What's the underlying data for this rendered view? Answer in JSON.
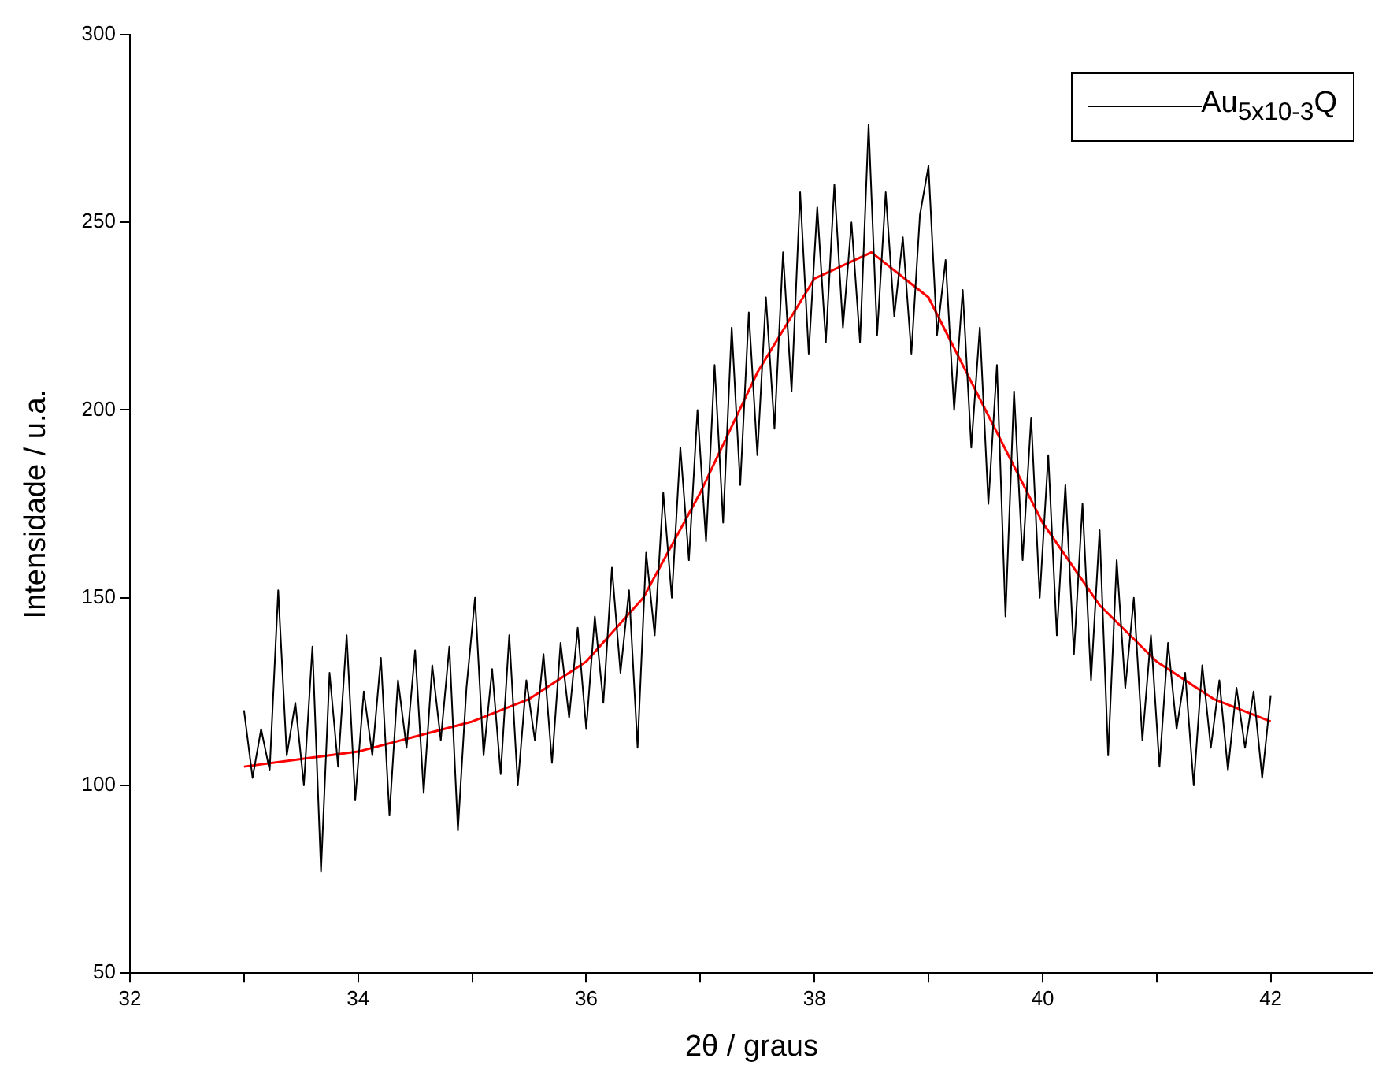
{
  "chart_data": {
    "type": "line",
    "xlabel": "2θ / graus",
    "ylabel": "Intensidade / u.a.",
    "xlim": [
      32,
      42.9
    ],
    "ylim": [
      50,
      300
    ],
    "xticks": [
      32,
      {
        "value": 33,
        "label": null
      },
      34,
      {
        "value": 35,
        "label": null
      },
      36,
      {
        "value": 37,
        "label": null
      },
      38,
      {
        "value": 39,
        "label": null
      },
      40,
      {
        "value": 41,
        "label": null
      },
      42
    ],
    "yticks": [
      50,
      100,
      150,
      200,
      250,
      300
    ],
    "grid": false,
    "legend": "top right",
    "marker": "none",
    "line_style": "solid",
    "series": [
      {
        "name": "Au$_{5x10-3}$Q",
        "color": "#000000",
        "x": [
          33.0,
          33.075,
          33.15,
          33.225,
          33.3,
          33.375,
          33.45,
          33.525,
          33.6,
          33.675,
          33.75,
          33.825,
          33.9,
          33.975,
          34.05,
          34.125,
          34.2,
          34.275,
          34.35,
          34.425,
          34.5,
          34.575,
          34.65,
          34.725,
          34.8,
          34.875,
          34.95,
          35.025,
          35.1,
          35.175,
          35.25,
          35.325,
          35.4,
          35.475,
          35.55,
          35.625,
          35.7,
          35.775,
          35.85,
          35.925,
          36.0,
          36.075,
          36.15,
          36.225,
          36.3,
          36.375,
          36.45,
          36.525,
          36.6,
          36.675,
          36.75,
          36.825,
          36.9,
          36.975,
          37.05,
          37.125,
          37.2,
          37.275,
          37.35,
          37.425,
          37.5,
          37.575,
          37.65,
          37.725,
          37.8,
          37.875,
          37.95,
          38.025,
          38.1,
          38.175,
          38.25,
          38.325,
          38.4,
          38.475,
          38.55,
          38.625,
          38.7,
          38.775,
          38.85,
          38.925,
          39.0,
          39.075,
          39.15,
          39.225,
          39.3,
          39.375,
          39.45,
          39.525,
          39.6,
          39.675,
          39.75,
          39.825,
          39.9,
          39.975,
          40.05,
          40.125,
          40.2,
          40.275,
          40.35,
          40.425,
          40.5,
          40.575,
          40.65,
          40.725,
          40.8,
          40.875,
          40.95,
          41.025,
          41.1,
          41.175,
          41.25,
          41.325,
          41.4,
          41.475,
          41.55,
          41.625,
          41.7,
          41.775,
          41.85,
          41.925,
          42.0
        ],
        "values": [
          120,
          102,
          115,
          104,
          152,
          108,
          122,
          100,
          137,
          77,
          130,
          105,
          140,
          96,
          125,
          108,
          134,
          92,
          128,
          110,
          136,
          98,
          132,
          112,
          137,
          88,
          126,
          150,
          108,
          131,
          103,
          140,
          100,
          128,
          112,
          135,
          106,
          138,
          118,
          142,
          115,
          145,
          122,
          158,
          130,
          152,
          110,
          162,
          140,
          178,
          150,
          190,
          160,
          200,
          165,
          212,
          170,
          222,
          180,
          226,
          188,
          230,
          195,
          242,
          205,
          258,
          215,
          254,
          218,
          260,
          222,
          250,
          218,
          276,
          220,
          258,
          225,
          246,
          215,
          252,
          265,
          220,
          240,
          200,
          232,
          190,
          222,
          175,
          212,
          145,
          205,
          160,
          198,
          150,
          188,
          140,
          180,
          135,
          175,
          128,
          168,
          108,
          160,
          126,
          150,
          112,
          140,
          105,
          138,
          115,
          130,
          100,
          132,
          110,
          128,
          104,
          126,
          110,
          125,
          102,
          124
        ]
      },
      {
        "color": "#ff0000",
        "x": [
          33,
          33.5,
          34,
          34.5,
          35,
          35.5,
          36,
          36.5,
          37,
          37.5,
          38,
          38.5,
          39,
          39.5,
          40,
          40.5,
          41,
          41.5,
          42
        ],
        "values": [
          105,
          107,
          109,
          113,
          117,
          123,
          133,
          150,
          178,
          210,
          235,
          242,
          230,
          200,
          170,
          148,
          133,
          123,
          117
        ]
      }
    ]
  }
}
